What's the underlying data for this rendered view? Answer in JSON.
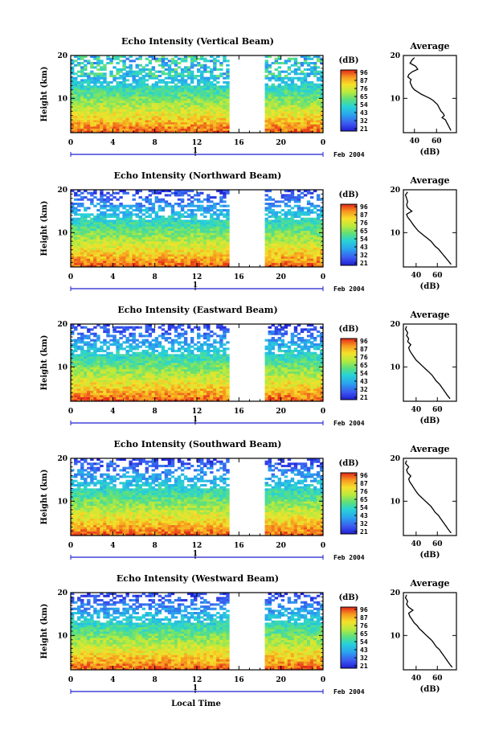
{
  "figure": {
    "xlabel": "Local Time",
    "colorbar_unit": "(dB)",
    "colorbar_ticks": [
      "96",
      "87",
      "76",
      "65",
      "54",
      "43",
      "32",
      "21"
    ],
    "date_label": "Feb 2004",
    "day_marker": "1",
    "avg_title": "Average",
    "avg_xlabel": "(dB)"
  },
  "chart_data": [
    {
      "type": "heatmap",
      "title": "Echo Intensity (Vertical Beam)",
      "ylabel": "Height (km)",
      "x_ticks": [
        "0",
        "4",
        "8",
        "12",
        "16",
        "20",
        "0"
      ],
      "y_ticks": [
        "10",
        "20"
      ],
      "xlim": [
        0,
        24
      ],
      "ylim": [
        2,
        20
      ],
      "data_gap_hours": [
        15.2,
        18.6
      ],
      "colorbar": {
        "unit": "dB",
        "ticks": [
          96,
          87,
          76,
          65,
          54,
          43,
          32,
          21
        ]
      },
      "average_profile": {
        "xlim": [
          30,
          78
        ],
        "x_ticks": [
          "40",
          "60"
        ],
        "y_ticks": [
          "10",
          "20"
        ],
        "points": [
          [
            40,
            19.5
          ],
          [
            38,
            19
          ],
          [
            36,
            18.2
          ],
          [
            41,
            17.5
          ],
          [
            43,
            16.8
          ],
          [
            38,
            16.2
          ],
          [
            35,
            15.6
          ],
          [
            34,
            15.0
          ],
          [
            37,
            14.4
          ],
          [
            36,
            13.8
          ],
          [
            37,
            13.2
          ],
          [
            38,
            12.6
          ],
          [
            40,
            12.0
          ],
          [
            43,
            11.5
          ],
          [
            46,
            11.0
          ],
          [
            50,
            10.5
          ],
          [
            54,
            10.0
          ],
          [
            57,
            9.5
          ],
          [
            59,
            9.0
          ],
          [
            61,
            8.5
          ],
          [
            62,
            8.0
          ],
          [
            63,
            7.5
          ],
          [
            64,
            7.0
          ],
          [
            66,
            6.5
          ],
          [
            67,
            6.0
          ],
          [
            65,
            5.5
          ],
          [
            68,
            5.0
          ],
          [
            69,
            4.5
          ],
          [
            70,
            4.0
          ],
          [
            71,
            3.5
          ],
          [
            72,
            3.0
          ],
          [
            73,
            2.5
          ]
        ]
      }
    },
    {
      "type": "heatmap",
      "title": "Echo Intensity (Northward Beam)",
      "ylabel": "Height (km)",
      "x_ticks": [
        "0",
        "4",
        "8",
        "12",
        "16",
        "20",
        "0"
      ],
      "y_ticks": [
        "10",
        "20"
      ],
      "xlim": [
        0,
        24
      ],
      "ylim": [
        2,
        20
      ],
      "data_gap_hours": [
        15.2,
        18.6
      ],
      "colorbar": {
        "unit": "dB",
        "ticks": [
          96,
          87,
          76,
          65,
          54,
          43,
          32,
          21
        ]
      },
      "average_profile": {
        "xlim": [
          28,
          78
        ],
        "x_ticks": [
          "40",
          "60"
        ],
        "y_ticks": [
          "10",
          "20"
        ],
        "points": [
          [
            32,
            19.5
          ],
          [
            30,
            18.8
          ],
          [
            31,
            18.0
          ],
          [
            32,
            17.2
          ],
          [
            31,
            16.5
          ],
          [
            32,
            15.8
          ],
          [
            36,
            15.0
          ],
          [
            31,
            14.3
          ],
          [
            32,
            13.6
          ],
          [
            34,
            13.0
          ],
          [
            36,
            12.3
          ],
          [
            38,
            11.6
          ],
          [
            40,
            11.0
          ],
          [
            42,
            10.4
          ],
          [
            45,
            9.8
          ],
          [
            48,
            9.2
          ],
          [
            51,
            8.6
          ],
          [
            54,
            8.0
          ],
          [
            56,
            7.4
          ],
          [
            58,
            6.8
          ],
          [
            61,
            6.2
          ],
          [
            63,
            5.6
          ],
          [
            65,
            5.0
          ],
          [
            67,
            4.4
          ],
          [
            69,
            3.8
          ],
          [
            71,
            3.2
          ],
          [
            73,
            2.6
          ]
        ]
      }
    },
    {
      "type": "heatmap",
      "title": "Echo Intensity (Eastward Beam)",
      "ylabel": "Height (km)",
      "x_ticks": [
        "0",
        "4",
        "8",
        "12",
        "16",
        "20",
        "0"
      ],
      "y_ticks": [
        "10",
        "20"
      ],
      "xlim": [
        0,
        24
      ],
      "ylim": [
        2,
        20
      ],
      "data_gap_hours": [
        15.2,
        18.6
      ],
      "colorbar": {
        "unit": "dB",
        "ticks": [
          96,
          87,
          76,
          65,
          54,
          43,
          32,
          21
        ]
      },
      "average_profile": {
        "xlim": [
          28,
          78
        ],
        "x_ticks": [
          "40",
          "60"
        ],
        "y_ticks": [
          "10",
          "20"
        ],
        "points": [
          [
            31,
            19.5
          ],
          [
            30,
            18.8
          ],
          [
            32,
            18.0
          ],
          [
            31,
            17.3
          ],
          [
            33,
            16.6
          ],
          [
            32,
            15.9
          ],
          [
            35,
            15.2
          ],
          [
            33,
            14.5
          ],
          [
            34,
            13.8
          ],
          [
            36,
            13.0
          ],
          [
            38,
            12.3
          ],
          [
            40,
            11.6
          ],
          [
            43,
            10.9
          ],
          [
            46,
            10.2
          ],
          [
            49,
            9.5
          ],
          [
            52,
            8.8
          ],
          [
            55,
            8.1
          ],
          [
            57,
            7.4
          ],
          [
            59,
            6.7
          ],
          [
            62,
            6.0
          ],
          [
            64,
            5.3
          ],
          [
            66,
            4.6
          ],
          [
            68,
            3.9
          ],
          [
            70,
            3.2
          ],
          [
            72,
            2.6
          ]
        ]
      }
    },
    {
      "type": "heatmap",
      "title": "Echo Intensity (Southward Beam)",
      "ylabel": "Height (km)",
      "x_ticks": [
        "0",
        "4",
        "8",
        "12",
        "16",
        "20",
        "0"
      ],
      "y_ticks": [
        "10",
        "20"
      ],
      "xlim": [
        0,
        24
      ],
      "ylim": [
        2,
        20
      ],
      "data_gap_hours": [
        15.2,
        18.6
      ],
      "colorbar": {
        "unit": "dB",
        "ticks": [
          96,
          87,
          76,
          65,
          54,
          43,
          32,
          21
        ]
      },
      "average_profile": {
        "xlim": [
          28,
          78
        ],
        "x_ticks": [
          "40",
          "60"
        ],
        "y_ticks": [
          "10",
          "20"
        ],
        "points": [
          [
            31,
            19.5
          ],
          [
            30,
            18.8
          ],
          [
            33,
            18.0
          ],
          [
            31,
            17.3
          ],
          [
            32,
            16.6
          ],
          [
            35,
            15.9
          ],
          [
            33,
            15.2
          ],
          [
            34,
            14.5
          ],
          [
            36,
            13.8
          ],
          [
            38,
            13.0
          ],
          [
            40,
            12.3
          ],
          [
            42,
            11.6
          ],
          [
            45,
            10.9
          ],
          [
            48,
            10.2
          ],
          [
            51,
            9.5
          ],
          [
            54,
            8.8
          ],
          [
            56,
            8.1
          ],
          [
            58,
            7.4
          ],
          [
            61,
            6.7
          ],
          [
            63,
            6.0
          ],
          [
            65,
            5.3
          ],
          [
            67,
            4.6
          ],
          [
            69,
            3.9
          ],
          [
            71,
            3.2
          ],
          [
            73,
            2.6
          ]
        ]
      }
    },
    {
      "type": "heatmap",
      "title": "Echo Intensity (Westward Beam)",
      "ylabel": "Height (km)",
      "x_ticks": [
        "0",
        "4",
        "8",
        "12",
        "16",
        "20",
        "0"
      ],
      "y_ticks": [
        "10",
        "20"
      ],
      "xlim": [
        0,
        24
      ],
      "ylim": [
        2,
        20
      ],
      "data_gap_hours": [
        15.2,
        18.6
      ],
      "colorbar": {
        "unit": "dB",
        "ticks": [
          96,
          87,
          76,
          65,
          54,
          43,
          32,
          21
        ]
      },
      "average_profile": {
        "xlim": [
          28,
          78
        ],
        "x_ticks": [
          "40",
          "60"
        ],
        "y_ticks": [
          "10",
          "20"
        ],
        "points": [
          [
            31,
            19.5
          ],
          [
            30,
            18.8
          ],
          [
            32,
            18.0
          ],
          [
            31,
            17.3
          ],
          [
            33,
            16.6
          ],
          [
            37,
            15.9
          ],
          [
            33,
            15.2
          ],
          [
            34,
            14.5
          ],
          [
            36,
            13.8
          ],
          [
            38,
            13.0
          ],
          [
            41,
            12.3
          ],
          [
            43,
            11.6
          ],
          [
            46,
            10.9
          ],
          [
            49,
            10.2
          ],
          [
            52,
            9.5
          ],
          [
            55,
            8.8
          ],
          [
            57,
            8.1
          ],
          [
            59,
            7.4
          ],
          [
            62,
            6.7
          ],
          [
            64,
            6.0
          ],
          [
            66,
            5.3
          ],
          [
            68,
            4.6
          ],
          [
            70,
            3.9
          ],
          [
            72,
            3.2
          ],
          [
            74,
            2.6
          ]
        ]
      }
    }
  ]
}
